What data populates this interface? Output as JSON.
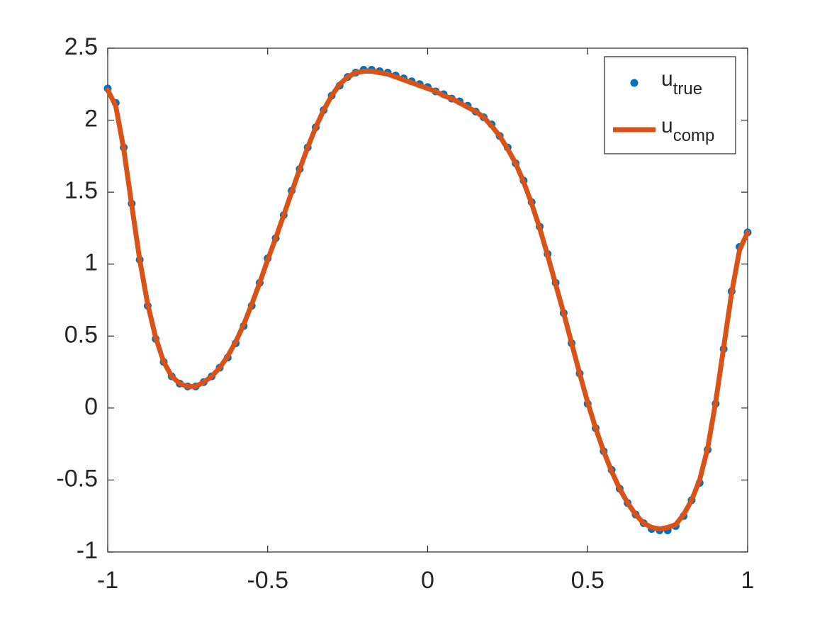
{
  "chart_data": {
    "type": "line",
    "x": [
      -1,
      -0.975,
      -0.95,
      -0.925,
      -0.9,
      -0.875,
      -0.85,
      -0.825,
      -0.8,
      -0.775,
      -0.75,
      -0.725,
      -0.7,
      -0.675,
      -0.65,
      -0.625,
      -0.6,
      -0.575,
      -0.55,
      -0.525,
      -0.5,
      -0.475,
      -0.45,
      -0.425,
      -0.4,
      -0.375,
      -0.35,
      -0.325,
      -0.3,
      -0.275,
      -0.25,
      -0.225,
      -0.2,
      -0.175,
      -0.15,
      -0.125,
      -0.1,
      -0.075,
      -0.05,
      -0.025,
      0,
      0.025,
      0.05,
      0.075,
      0.1,
      0.125,
      0.15,
      0.175,
      0.2,
      0.225,
      0.25,
      0.275,
      0.3,
      0.325,
      0.35,
      0.375,
      0.4,
      0.425,
      0.45,
      0.475,
      0.5,
      0.525,
      0.55,
      0.575,
      0.6,
      0.625,
      0.65,
      0.675,
      0.7,
      0.725,
      0.75,
      0.775,
      0.8,
      0.825,
      0.85,
      0.875,
      0.9,
      0.925,
      0.95,
      0.975,
      1
    ],
    "series": [
      {
        "name": "u",
        "name_sub": "true",
        "style": "markers",
        "color": "#0072bd",
        "values": [
          2.22,
          2.12,
          1.81,
          1.42,
          1.03,
          0.71,
          0.48,
          0.32,
          0.22,
          0.17,
          0.15,
          0.15,
          0.18,
          0.22,
          0.28,
          0.35,
          0.45,
          0.57,
          0.71,
          0.87,
          1.04,
          1.18,
          1.34,
          1.51,
          1.66,
          1.81,
          1.95,
          2.07,
          2.17,
          2.24,
          2.3,
          2.33,
          2.35,
          2.35,
          2.34,
          2.33,
          2.31,
          2.29,
          2.27,
          2.25,
          2.23,
          2.2,
          2.18,
          2.15,
          2.13,
          2.1,
          2.06,
          2.02,
          1.97,
          1.89,
          1.81,
          1.7,
          1.58,
          1.43,
          1.26,
          1.07,
          0.87,
          0.66,
          0.45,
          0.24,
          0.03,
          -0.14,
          -0.3,
          -0.43,
          -0.56,
          -0.66,
          -0.74,
          -0.8,
          -0.84,
          -0.85,
          -0.85,
          -0.82,
          -0.75,
          -0.64,
          -0.52,
          -0.29,
          0.03,
          0.41,
          0.81,
          1.12,
          1.22
        ]
      },
      {
        "name": "u",
        "name_sub": "comp",
        "style": "line",
        "color": "#d95319",
        "values": [
          2.21,
          2.1,
          1.8,
          1.41,
          1.03,
          0.72,
          0.49,
          0.32,
          0.22,
          0.17,
          0.15,
          0.15,
          0.18,
          0.22,
          0.28,
          0.36,
          0.46,
          0.58,
          0.72,
          0.87,
          1.03,
          1.18,
          1.34,
          1.5,
          1.66,
          1.81,
          1.95,
          2.07,
          2.17,
          2.25,
          2.3,
          2.33,
          2.34,
          2.34,
          2.33,
          2.32,
          2.3,
          2.28,
          2.26,
          2.24,
          2.22,
          2.2,
          2.17,
          2.15,
          2.12,
          2.09,
          2.06,
          2.02,
          1.96,
          1.89,
          1.8,
          1.7,
          1.57,
          1.42,
          1.25,
          1.06,
          0.86,
          0.66,
          0.45,
          0.24,
          0.04,
          -0.14,
          -0.3,
          -0.44,
          -0.56,
          -0.66,
          -0.74,
          -0.8,
          -0.83,
          -0.84,
          -0.83,
          -0.81,
          -0.74,
          -0.64,
          -0.5,
          -0.28,
          0.04,
          0.42,
          0.8,
          1.1,
          1.22
        ]
      }
    ],
    "xlim": [
      -1,
      1
    ],
    "ylim": [
      -1,
      2.5
    ],
    "xticks": [
      -1,
      -0.5,
      0,
      0.5,
      1
    ],
    "yticks": [
      -1,
      -0.5,
      0,
      0.5,
      1,
      1.5,
      2,
      2.5
    ],
    "grid": false,
    "legend": "top-right"
  }
}
